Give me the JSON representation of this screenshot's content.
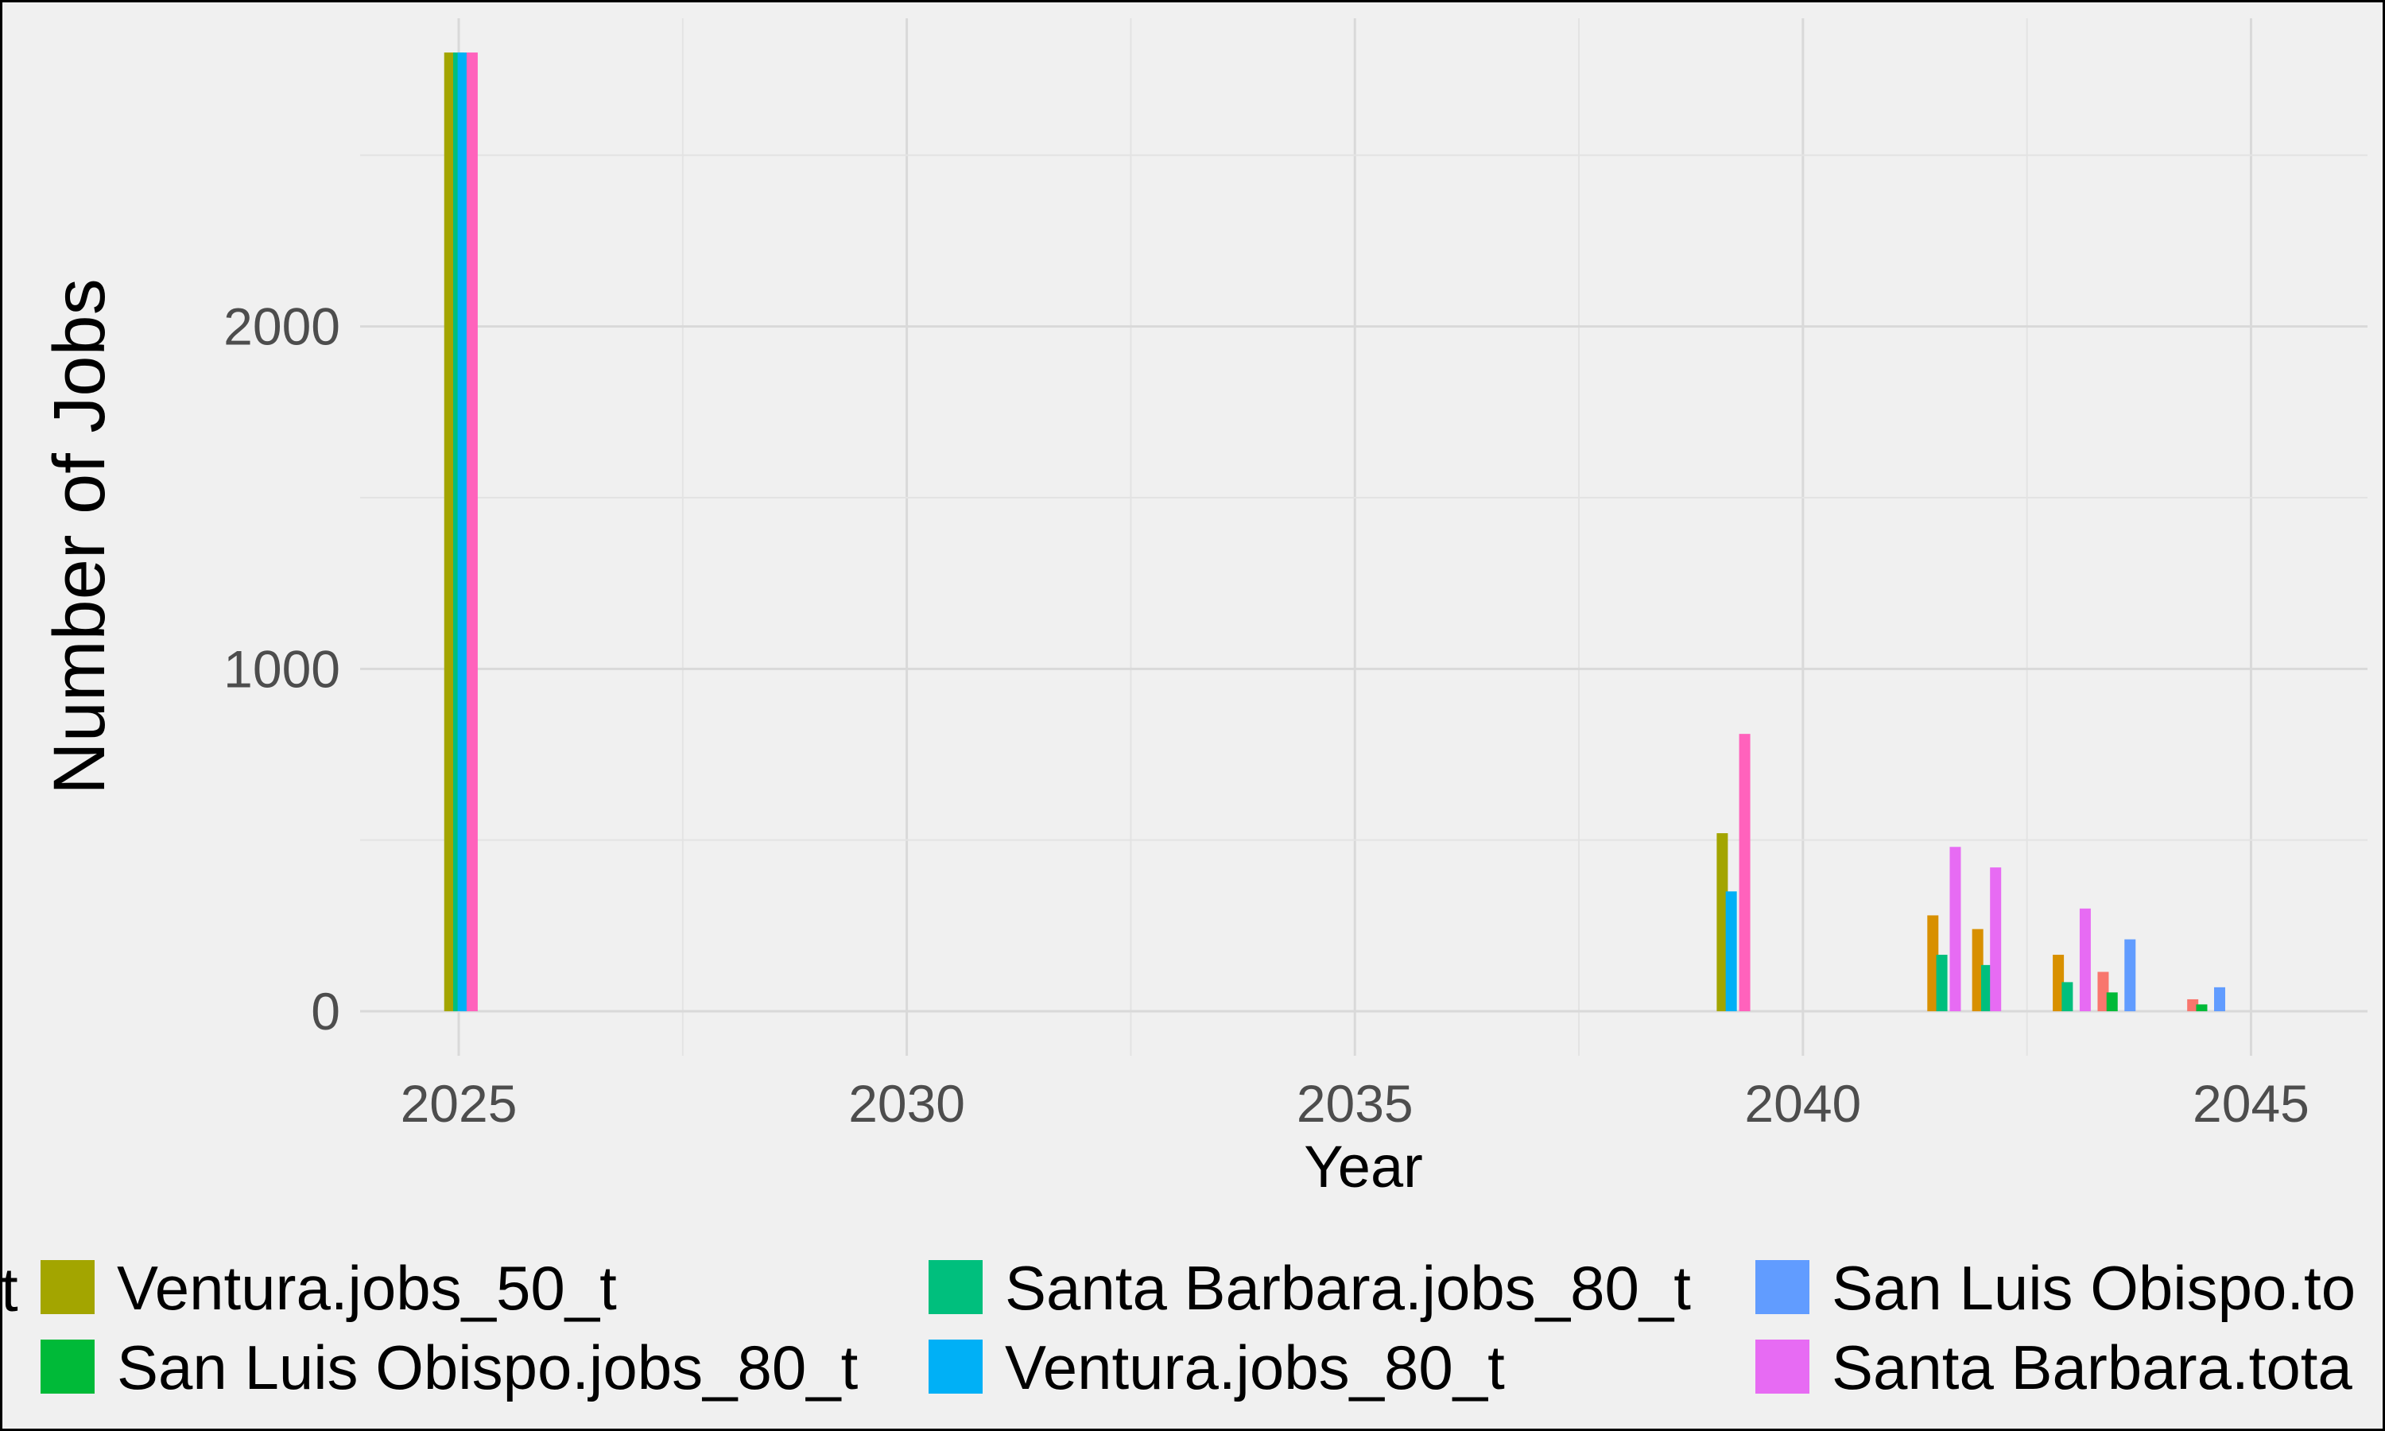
{
  "chart_data": {
    "type": "bar",
    "xlabel": "Year",
    "ylabel": "Number of Jobs",
    "xlim": [
      2023.9,
      2046.3
    ],
    "ylim": [
      -130,
      2900
    ],
    "x_ticks": [
      2025,
      2030,
      2035,
      2040,
      2045
    ],
    "y_ticks": [
      0,
      1000,
      2000
    ],
    "grid": true,
    "legend_position": "bottom",
    "bars": [
      {
        "x": 2024.9,
        "value": 2800,
        "series": "Ventura.jobs_50_t",
        "color": "#a3a500"
      },
      {
        "x": 2025.0,
        "value": 2800,
        "series": "Santa Barbara.jobs_80_t",
        "color": "#00bf7d"
      },
      {
        "x": 2025.05,
        "value": 2800,
        "series": "Ventura.jobs_80_t",
        "color": "#00b0f6"
      },
      {
        "x": 2025.15,
        "value": 2800,
        "series": "",
        "color": "#ff62bc"
      },
      {
        "x": 2039.1,
        "value": 520,
        "series": "Ventura.jobs_50_t",
        "color": "#a3a500"
      },
      {
        "x": 2039.2,
        "value": 350,
        "series": "Ventura.jobs_80_t",
        "color": "#00b0f6"
      },
      {
        "x": 2039.35,
        "value": 810,
        "series": "",
        "color": "#ff62bc"
      },
      {
        "x": 2041.45,
        "value": 280,
        "series": "",
        "color": "#d89000"
      },
      {
        "x": 2041.55,
        "value": 165,
        "series": "Santa Barbara.jobs_80_t",
        "color": "#00bf7d"
      },
      {
        "x": 2041.7,
        "value": 480,
        "series": "Santa Barbara.tota",
        "color": "#e76bf3"
      },
      {
        "x": 2041.95,
        "value": 240,
        "series": "",
        "color": "#d89000"
      },
      {
        "x": 2042.05,
        "value": 135,
        "series": "Santa Barbara.jobs_80_t",
        "color": "#00bf7d"
      },
      {
        "x": 2042.15,
        "value": 420,
        "series": "Santa Barbara.tota",
        "color": "#e76bf3"
      },
      {
        "x": 2042.85,
        "value": 165,
        "series": "",
        "color": "#d89000"
      },
      {
        "x": 2042.95,
        "value": 85,
        "series": "Santa Barbara.jobs_80_t",
        "color": "#00bf7d"
      },
      {
        "x": 2043.15,
        "value": 300,
        "series": "Santa Barbara.tota",
        "color": "#e76bf3"
      },
      {
        "x": 2043.35,
        "value": 115,
        "series": "",
        "color": "#f8766d"
      },
      {
        "x": 2043.45,
        "value": 55,
        "series": "San Luis Obispo.jobs_80_t",
        "color": "#00ba38"
      },
      {
        "x": 2043.65,
        "value": 210,
        "series": "San Luis Obispo.to",
        "color": "#619cff"
      },
      {
        "x": 2044.35,
        "value": 35,
        "series": "",
        "color": "#f8766d"
      },
      {
        "x": 2044.45,
        "value": 20,
        "series": "San Luis Obispo.jobs_80_t",
        "color": "#00ba38"
      },
      {
        "x": 2044.65,
        "value": 70,
        "series": "San Luis Obispo.to",
        "color": "#619cff"
      }
    ],
    "legend": {
      "clipped_start": "t",
      "items": [
        {
          "label": "Ventura.jobs_50_t",
          "color": "#a3a500"
        },
        {
          "label": "San Luis Obispo.jobs_80_t",
          "color": "#00ba38"
        },
        {
          "label": "Santa Barbara.jobs_80_t",
          "color": "#00bf7d"
        },
        {
          "label": "Ventura.jobs_80_t",
          "color": "#00b0f6"
        },
        {
          "label": "San Luis Obispo.to",
          "color": "#619cff"
        },
        {
          "label": "Santa Barbara.tota",
          "color": "#e76bf3"
        }
      ]
    }
  }
}
